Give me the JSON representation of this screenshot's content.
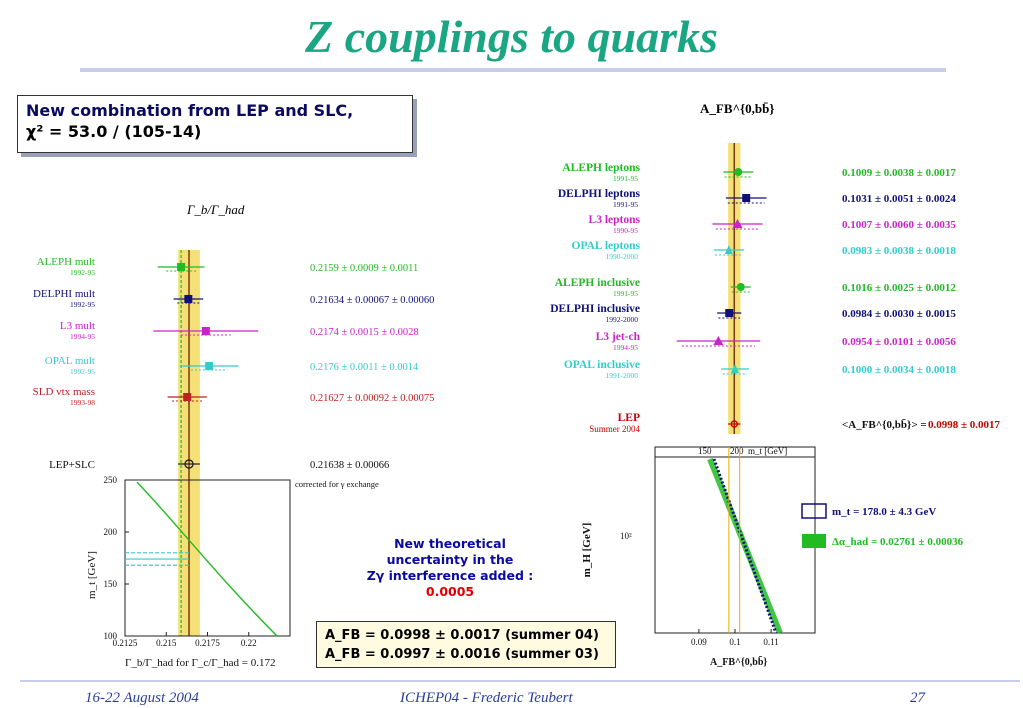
{
  "slide": {
    "title": "Z couplings to quarks",
    "note_line1": "New combination from LEP and SLC,",
    "note_line2": "χ² = 53.0 / (105-14)",
    "theory_note": [
      "New theoretical",
      "uncertainty in the",
      "Zγ interference added :"
    ],
    "theory_value": "0.0005",
    "afb_lines": [
      "A_FB = 0.0998 ± 0.0017 (summer 04)",
      "A_FB = 0.0997 ± 0.0016 (summer 03)"
    ],
    "footer_left": "16-22 August 2004",
    "footer_center": "ICHEP04 - Frederic Teubert",
    "footer_right": "27"
  },
  "colors": {
    "title": "#1aa583",
    "band": "#f0d64a",
    "aleph": "#22bb22",
    "delphi": "#10107a",
    "l3": "#cc22cc",
    "opal": "#33cccc",
    "sld": "#bb2222",
    "lep": "#cc0000"
  },
  "chart_data": [
    {
      "type": "scatter",
      "title": "Γ_b/Γ_had",
      "series": [
        {
          "name": "ALEPH mult",
          "period": "1992-95",
          "value": 0.2159,
          "stat": 0.0009,
          "syst": 0.0011,
          "label": "0.2159 ± 0.0009 ± 0.0011",
          "color": "aleph"
        },
        {
          "name": "DELPHI mult",
          "period": "1992-95",
          "value": 0.21634,
          "stat": 0.00067,
          "syst": 0.0006,
          "label": "0.21634 ± 0.00067 ± 0.00060",
          "color": "delphi"
        },
        {
          "name": "L3 mult",
          "period": "1994-95",
          "value": 0.2174,
          "stat": 0.0015,
          "syst": 0.0028,
          "label": "0.2174 ± 0.0015 ± 0.0028",
          "color": "l3"
        },
        {
          "name": "OPAL mult",
          "period": "1992-95",
          "value": 0.2176,
          "stat": 0.0011,
          "syst": 0.0014,
          "label": "0.2176 ± 0.0011 ± 0.0014",
          "color": "opal"
        },
        {
          "name": "SLD vtx mass",
          "period": "1993-98",
          "value": 0.21627,
          "stat": 0.00092,
          "syst": 0.00075,
          "label": "0.21627 ± 0.00092 ± 0.00075",
          "color": "sld"
        }
      ],
      "combined": {
        "name": "LEP+SLC",
        "value": 0.21638,
        "error": 0.00066,
        "label": "0.21638 ± 0.00066",
        "note": "corrected for γ exchange"
      },
      "xlim": [
        0.2125,
        0.2225
      ],
      "xticks": [
        "0.2125",
        "0.215",
        "0.2175",
        "0.22"
      ],
      "inset": {
        "ylabel": "m_t [GeV]",
        "xlabel": "Γ_b/Γ_had for Γ_c/Γ_had = 0.172",
        "yticks": [
          "100",
          "150",
          "200",
          "250"
        ],
        "ylim": [
          100,
          250
        ],
        "mt_band": [
          168,
          180
        ]
      }
    },
    {
      "type": "scatter",
      "title": "A_FB^{0,bb̄}",
      "series": [
        {
          "name": "ALEPH leptons",
          "period": "1991-95",
          "value": 0.1009,
          "stat": 0.0038,
          "syst": 0.0017,
          "label": "0.1009 ± 0.0038 ± 0.0017",
          "color": "aleph"
        },
        {
          "name": "DELPHI leptons",
          "period": "1991-95",
          "value": 0.1031,
          "stat": 0.0051,
          "syst": 0.0024,
          "label": "0.1031 ± 0.0051 ± 0.0024",
          "color": "delphi"
        },
        {
          "name": "L3 leptons",
          "period": "1990-95",
          "value": 0.1007,
          "stat": 0.006,
          "syst": 0.0035,
          "label": "0.1007 ± 0.0060 ± 0.0035",
          "color": "l3"
        },
        {
          "name": "OPAL leptons",
          "period": "1990-2000",
          "value": 0.0983,
          "stat": 0.0038,
          "syst": 0.0018,
          "label": "0.0983 ± 0.0038 ± 0.0018",
          "color": "opal"
        },
        {
          "name": "ALEPH inclusive",
          "period": "1991-95",
          "value": 0.1016,
          "stat": 0.0025,
          "syst": 0.0012,
          "label": "0.1016 ± 0.0025 ± 0.0012",
          "color": "aleph"
        },
        {
          "name": "DELPHI inclusive",
          "period": "1992-2000",
          "value": 0.0984,
          "stat": 0.003,
          "syst": 0.0015,
          "label": "0.0984 ± 0.0030 ± 0.0015",
          "color": "delphi"
        },
        {
          "name": "L3 jet-ch",
          "period": "1994-95",
          "value": 0.0954,
          "stat": 0.0101,
          "syst": 0.0056,
          "label": "0.0954 ± 0.0101 ± 0.0056",
          "color": "l3"
        },
        {
          "name": "OPAL inclusive",
          "period": "1991-2000",
          "value": 0.1,
          "stat": 0.0034,
          "syst": 0.0018,
          "label": "0.1000 ± 0.0034 ± 0.0018",
          "color": "opal"
        }
      ],
      "combined": {
        "name": "LEP",
        "period": "Summer 2004",
        "value": 0.0998,
        "error": 0.0017,
        "label_prefix": "<A_FB^{0,bb̄}> =",
        "label": "0.0998 ± 0.0017"
      },
      "xlim": [
        0.082,
        0.118
      ],
      "xticks": [
        "0.09",
        "0.1",
        "0.11"
      ],
      "inset": {
        "ylabel": "m_H [GeV]",
        "xlabel": "A_FB^{0,bb̄}",
        "ytick": "10²",
        "top_axis_ticks": [
          "150",
          "200"
        ],
        "top_axis_label": "m_t [GeV]",
        "legend": [
          "m_t = 178.0 ± 4.3 GeV",
          "Δα_had = 0.02761 ± 0.00036"
        ]
      }
    }
  ]
}
